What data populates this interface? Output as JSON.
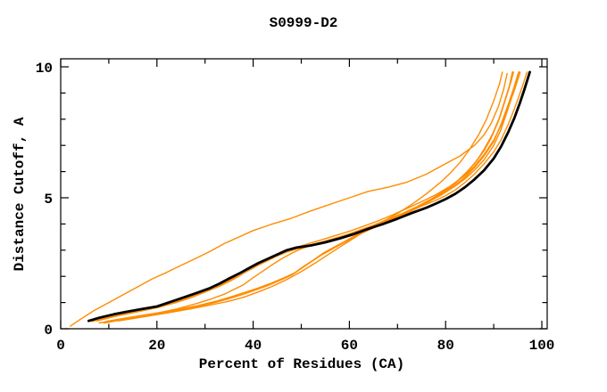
{
  "window": {
    "background": "#ffffff"
  },
  "chart_data": {
    "type": "line",
    "title": "S0999-D2",
    "xlabel": "Percent of Residues (CA)",
    "ylabel": "Distance Cutoff, A",
    "xlim": [
      0,
      100
    ],
    "ylim": [
      0,
      10
    ],
    "x_major_ticks": [
      0,
      20,
      40,
      60,
      80,
      100
    ],
    "x_minor_ticks": [
      10,
      30,
      50,
      70,
      90
    ],
    "y_major_ticks": [
      0,
      5,
      10
    ],
    "y_minor_ticks": [
      1,
      2,
      3,
      4,
      6,
      7,
      8,
      9
    ],
    "grid": false,
    "legend_position": "none",
    "frame": true,
    "axis_color": "#000000",
    "model_color": "#ff8c00",
    "reference_color": "#000000",
    "series": [
      {
        "name": "orange-1",
        "color": "#ff8c00",
        "width": 1.4,
        "points": [
          [
            2,
            0.1
          ],
          [
            4,
            0.35
          ],
          [
            7,
            0.7
          ],
          [
            10,
            1.0
          ],
          [
            13,
            1.3
          ],
          [
            16,
            1.6
          ],
          [
            19,
            1.9
          ],
          [
            22,
            2.15
          ],
          [
            25,
            2.42
          ],
          [
            28,
            2.68
          ],
          [
            31,
            2.95
          ],
          [
            34,
            3.25
          ],
          [
            37,
            3.5
          ],
          [
            40,
            3.75
          ],
          [
            44,
            4.0
          ],
          [
            48,
            4.22
          ],
          [
            52,
            4.5
          ],
          [
            56,
            4.75
          ],
          [
            60,
            5.0
          ],
          [
            64,
            5.25
          ],
          [
            68,
            5.4
          ],
          [
            72,
            5.6
          ],
          [
            76,
            5.9
          ],
          [
            80,
            6.3
          ],
          [
            83,
            6.6
          ],
          [
            86,
            7.0
          ],
          [
            88,
            7.4
          ],
          [
            89.5,
            7.85
          ],
          [
            91,
            8.5
          ],
          [
            92,
            9.1
          ],
          [
            92.8,
            9.75
          ]
        ]
      },
      {
        "name": "orange-2",
        "color": "#ff8c00",
        "width": 1.4,
        "points": [
          [
            6.5,
            0.28
          ],
          [
            10,
            0.45
          ],
          [
            14,
            0.6
          ],
          [
            18,
            0.75
          ],
          [
            22,
            0.92
          ],
          [
            25,
            1.1
          ],
          [
            28,
            1.3
          ],
          [
            31,
            1.5
          ],
          [
            34,
            1.75
          ],
          [
            36,
            1.95
          ],
          [
            38,
            2.18
          ],
          [
            40,
            2.38
          ],
          [
            42,
            2.56
          ],
          [
            44,
            2.74
          ],
          [
            46,
            2.9
          ],
          [
            48,
            3.02
          ],
          [
            51,
            3.16
          ],
          [
            54,
            3.3
          ],
          [
            57,
            3.46
          ],
          [
            60,
            3.62
          ],
          [
            63,
            3.8
          ],
          [
            66,
            4.0
          ],
          [
            69,
            4.2
          ],
          [
            72,
            4.44
          ],
          [
            75,
            4.68
          ],
          [
            78,
            4.9
          ],
          [
            80,
            5.08
          ],
          [
            82,
            5.3
          ],
          [
            84,
            5.58
          ],
          [
            86,
            5.9
          ],
          [
            88,
            6.3
          ],
          [
            90,
            6.75
          ],
          [
            91.5,
            7.2
          ],
          [
            93,
            7.8
          ],
          [
            94.3,
            8.4
          ],
          [
            95.5,
            9.0
          ],
          [
            96.3,
            9.45
          ],
          [
            96.9,
            9.8
          ]
        ]
      },
      {
        "name": "orange-3",
        "color": "#ff8c00",
        "width": 1.4,
        "points": [
          [
            7,
            0.32
          ],
          [
            12,
            0.55
          ],
          [
            17,
            0.75
          ],
          [
            22,
            0.95
          ],
          [
            26,
            1.18
          ],
          [
            30,
            1.45
          ],
          [
            33,
            1.68
          ],
          [
            36,
            1.95
          ],
          [
            38,
            2.2
          ],
          [
            40,
            2.42
          ],
          [
            42,
            2.6
          ],
          [
            45,
            2.85
          ],
          [
            48,
            3.05
          ],
          [
            51,
            3.22
          ],
          [
            54,
            3.38
          ],
          [
            57,
            3.55
          ],
          [
            60,
            3.72
          ],
          [
            63,
            3.92
          ],
          [
            66,
            4.12
          ],
          [
            69,
            4.35
          ],
          [
            72,
            4.6
          ],
          [
            75,
            4.85
          ],
          [
            78,
            5.12
          ],
          [
            81,
            5.45
          ],
          [
            84,
            5.85
          ],
          [
            86,
            6.2
          ],
          [
            88,
            6.65
          ],
          [
            90,
            7.2
          ],
          [
            91.5,
            7.75
          ],
          [
            93,
            8.45
          ],
          [
            94.2,
            9.05
          ],
          [
            95,
            9.5
          ],
          [
            95.5,
            9.8
          ]
        ]
      },
      {
        "name": "orange-4",
        "color": "#ff8c00",
        "width": 1.4,
        "points": [
          [
            8,
            0.22
          ],
          [
            12,
            0.35
          ],
          [
            16,
            0.48
          ],
          [
            20,
            0.6
          ],
          [
            24,
            0.75
          ],
          [
            28,
            0.95
          ],
          [
            31,
            1.12
          ],
          [
            34,
            1.32
          ],
          [
            36,
            1.5
          ],
          [
            38,
            1.68
          ],
          [
            40,
            1.95
          ],
          [
            42,
            2.2
          ],
          [
            44,
            2.45
          ],
          [
            46,
            2.68
          ],
          [
            48,
            2.88
          ],
          [
            50,
            3.05
          ],
          [
            52,
            3.18
          ],
          [
            55,
            3.32
          ],
          [
            58,
            3.48
          ],
          [
            61,
            3.65
          ],
          [
            64,
            3.85
          ],
          [
            67,
            4.05
          ],
          [
            70,
            4.28
          ],
          [
            73,
            4.52
          ],
          [
            76,
            4.8
          ],
          [
            79,
            5.1
          ],
          [
            82,
            5.45
          ],
          [
            84,
            5.72
          ],
          [
            86,
            6.05
          ],
          [
            88,
            6.45
          ],
          [
            90,
            7.0
          ],
          [
            91.5,
            7.6
          ],
          [
            92.8,
            8.3
          ],
          [
            94,
            9.0
          ],
          [
            94.8,
            9.5
          ],
          [
            95.2,
            9.8
          ]
        ]
      },
      {
        "name": "orange-5",
        "color": "#ff8c00",
        "width": 1.5,
        "points": [
          [
            9,
            0.22
          ],
          [
            14,
            0.38
          ],
          [
            19,
            0.52
          ],
          [
            24,
            0.68
          ],
          [
            28,
            0.82
          ],
          [
            32,
            1.0
          ],
          [
            35,
            1.15
          ],
          [
            38,
            1.32
          ],
          [
            40,
            1.45
          ],
          [
            43,
            1.65
          ],
          [
            46,
            1.88
          ],
          [
            48,
            2.05
          ],
          [
            50,
            2.3
          ],
          [
            52,
            2.55
          ],
          [
            54,
            2.8
          ],
          [
            56,
            3.0
          ],
          [
            58,
            3.2
          ],
          [
            60,
            3.4
          ],
          [
            62,
            3.6
          ],
          [
            65,
            3.85
          ],
          [
            68,
            4.08
          ],
          [
            71,
            4.32
          ],
          [
            74,
            4.6
          ],
          [
            77,
            4.9
          ],
          [
            80,
            5.25
          ],
          [
            82,
            5.55
          ],
          [
            84,
            5.9
          ],
          [
            86,
            6.3
          ],
          [
            88,
            6.8
          ],
          [
            89.5,
            7.3
          ],
          [
            91,
            7.95
          ],
          [
            92.3,
            8.7
          ],
          [
            93.3,
            9.3
          ],
          [
            93.9,
            9.8
          ]
        ]
      },
      {
        "name": "orange-6",
        "color": "#ff8c00",
        "width": 1.5,
        "points": [
          [
            9.5,
            0.28
          ],
          [
            14.5,
            0.44
          ],
          [
            19.5,
            0.58
          ],
          [
            24.5,
            0.74
          ],
          [
            28.5,
            0.88
          ],
          [
            32.5,
            1.06
          ],
          [
            35.5,
            1.22
          ],
          [
            38.5,
            1.4
          ],
          [
            40.5,
            1.52
          ],
          [
            43.5,
            1.72
          ],
          [
            46.5,
            1.95
          ],
          [
            48.5,
            2.12
          ],
          [
            50.5,
            2.38
          ],
          [
            52.5,
            2.62
          ],
          [
            54.5,
            2.88
          ],
          [
            56.5,
            3.08
          ],
          [
            58.5,
            3.28
          ],
          [
            60.5,
            3.48
          ],
          [
            62.5,
            3.68
          ],
          [
            65.5,
            3.92
          ],
          [
            68.5,
            4.15
          ],
          [
            71.5,
            4.4
          ],
          [
            74.5,
            4.68
          ],
          [
            77.5,
            5.0
          ],
          [
            80,
            5.3
          ],
          [
            82.5,
            5.65
          ],
          [
            84.5,
            6.0
          ],
          [
            86.5,
            6.42
          ],
          [
            88,
            6.85
          ],
          [
            89.8,
            7.45
          ],
          [
            91.3,
            8.1
          ],
          [
            92.6,
            8.85
          ],
          [
            93.6,
            9.45
          ],
          [
            94.1,
            9.8
          ]
        ]
      },
      {
        "name": "orange-7",
        "color": "#ff8c00",
        "width": 1.4,
        "points": [
          [
            12,
            0.3
          ],
          [
            17,
            0.45
          ],
          [
            22,
            0.6
          ],
          [
            27,
            0.76
          ],
          [
            31,
            0.9
          ],
          [
            35,
            1.05
          ],
          [
            38,
            1.2
          ],
          [
            41,
            1.4
          ],
          [
            44,
            1.62
          ],
          [
            47,
            1.88
          ],
          [
            50,
            2.18
          ],
          [
            53,
            2.52
          ],
          [
            56,
            2.88
          ],
          [
            58,
            3.12
          ],
          [
            60,
            3.35
          ],
          [
            62,
            3.58
          ],
          [
            64,
            3.8
          ],
          [
            67,
            4.1
          ],
          [
            70,
            4.4
          ],
          [
            73,
            4.75
          ],
          [
            76,
            5.15
          ],
          [
            79,
            5.6
          ],
          [
            81,
            5.95
          ],
          [
            83,
            6.35
          ],
          [
            85,
            6.85
          ],
          [
            87,
            7.45
          ],
          [
            88.5,
            8.0
          ],
          [
            90,
            8.7
          ],
          [
            91.2,
            9.35
          ],
          [
            91.8,
            9.8
          ]
        ]
      },
      {
        "name": "orange-8",
        "color": "#ff8c00",
        "width": 1.4,
        "points": [
          [
            7.5,
            0.3
          ],
          [
            12,
            0.5
          ],
          [
            16,
            0.65
          ],
          [
            20,
            0.8
          ],
          [
            24,
            1.0
          ],
          [
            27,
            1.18
          ],
          [
            30,
            1.4
          ],
          [
            33,
            1.62
          ],
          [
            35,
            1.8
          ],
          [
            37,
            2.0
          ],
          [
            39,
            2.22
          ],
          [
            41,
            2.42
          ],
          [
            43,
            2.6
          ],
          [
            45,
            2.78
          ],
          [
            47,
            2.93
          ],
          [
            50,
            3.1
          ],
          [
            53,
            3.24
          ],
          [
            56,
            3.4
          ],
          [
            59,
            3.56
          ],
          [
            62,
            3.76
          ],
          [
            65,
            3.96
          ],
          [
            68,
            4.18
          ],
          [
            71,
            4.4
          ],
          [
            74,
            4.66
          ],
          [
            77,
            4.95
          ],
          [
            80,
            5.22
          ],
          [
            82,
            5.48
          ],
          [
            84,
            5.78
          ],
          [
            86,
            6.15
          ],
          [
            88,
            6.6
          ],
          [
            90,
            7.15
          ],
          [
            91.5,
            7.8
          ],
          [
            93,
            8.55
          ],
          [
            94.2,
            9.2
          ],
          [
            95,
            9.7
          ],
          [
            95.3,
            9.8
          ]
        ]
      },
      {
        "name": "black-main",
        "color": "#000000",
        "width": 2.8,
        "points": [
          [
            5.8,
            0.3
          ],
          [
            8,
            0.42
          ],
          [
            11,
            0.55
          ],
          [
            14,
            0.66
          ],
          [
            17,
            0.76
          ],
          [
            20,
            0.85
          ],
          [
            24,
            1.1
          ],
          [
            28,
            1.35
          ],
          [
            31,
            1.55
          ],
          [
            33,
            1.72
          ],
          [
            35,
            1.92
          ],
          [
            37,
            2.1
          ],
          [
            39,
            2.3
          ],
          [
            41,
            2.5
          ],
          [
            44,
            2.75
          ],
          [
            47,
            3.0
          ],
          [
            49,
            3.1
          ],
          [
            52,
            3.18
          ],
          [
            55,
            3.3
          ],
          [
            58,
            3.45
          ],
          [
            61,
            3.62
          ],
          [
            64,
            3.82
          ],
          [
            67,
            4.0
          ],
          [
            70,
            4.2
          ],
          [
            73,
            4.42
          ],
          [
            76,
            4.62
          ],
          [
            78,
            4.78
          ],
          [
            80,
            4.95
          ],
          [
            82,
            5.15
          ],
          [
            84,
            5.4
          ],
          [
            86,
            5.7
          ],
          [
            88,
            6.05
          ],
          [
            90,
            6.5
          ],
          [
            91.5,
            6.95
          ],
          [
            93,
            7.5
          ],
          [
            94.3,
            8.05
          ],
          [
            95.4,
            8.6
          ],
          [
            96.3,
            9.1
          ],
          [
            97,
            9.5
          ],
          [
            97.5,
            9.8
          ]
        ]
      }
    ]
  }
}
